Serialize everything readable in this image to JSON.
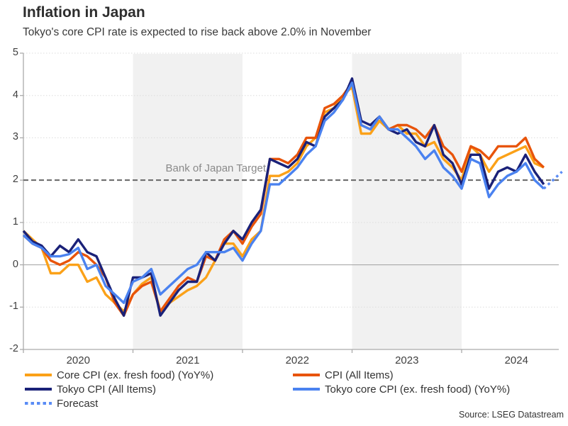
{
  "title": "Inflation in Japan",
  "subtitle": "Tokyo's core CPI rate is expected to rise back above 2.0% in November",
  "source": "Source: LSEG Datastream",
  "annotations": {
    "boj_target_label": "Bank of Japan Target",
    "boj_target_value": 2.0
  },
  "colors": {
    "band": "#f1f1f1",
    "gridline": "#dcdcdc",
    "zero_line": "#a0a0a0",
    "axis": "#ababab",
    "target_line": "#666666"
  },
  "chart_data": {
    "type": "line",
    "x_start": "2020-01",
    "x_frequency": "monthly",
    "x_tick_labels": [
      "2020",
      "2021",
      "2022",
      "2023",
      "2024"
    ],
    "shaded_year_bands": [
      "2021",
      "2023"
    ],
    "ylim": [
      -2,
      5
    ],
    "y_ticks": [
      5,
      4,
      3,
      2,
      1,
      0,
      -1,
      -2
    ],
    "series": [
      {
        "name": "Core CPI (ex. fresh food) (YoY%)",
        "color": "#FBA118",
        "values": [
          0.8,
          0.6,
          0.4,
          -0.2,
          -0.2,
          0.0,
          0.0,
          -0.4,
          -0.3,
          -0.7,
          -0.9,
          -1.1,
          -0.7,
          -0.45,
          -0.3,
          -1.1,
          -0.9,
          -0.75,
          -0.6,
          -0.5,
          -0.3,
          0.1,
          0.5,
          0.5,
          0.2,
          0.6,
          0.8,
          2.1,
          2.1,
          2.2,
          2.4,
          2.8,
          3.0,
          3.6,
          3.7,
          4.0,
          4.2,
          3.1,
          3.1,
          3.4,
          3.2,
          3.3,
          3.1,
          3.1,
          2.8,
          2.9,
          2.5,
          2.3,
          2.0,
          2.8,
          2.6,
          2.2,
          2.5,
          2.6,
          2.7,
          2.8,
          2.4,
          2.3
        ]
      },
      {
        "name": "CPI (All Items)",
        "color": "#E8540A",
        "values": [
          0.7,
          0.5,
          0.4,
          0.1,
          0.0,
          0.1,
          0.3,
          0.2,
          0.0,
          -0.3,
          -0.9,
          -1.2,
          -0.7,
          -0.5,
          -0.4,
          -1.1,
          -0.8,
          -0.5,
          -0.3,
          -0.4,
          0.2,
          0.1,
          0.6,
          0.8,
          0.5,
          0.9,
          1.2,
          2.5,
          2.5,
          2.4,
          2.6,
          3.0,
          3.0,
          3.7,
          3.8,
          4.0,
          4.3,
          3.3,
          3.2,
          3.5,
          3.2,
          3.3,
          3.3,
          3.2,
          3.0,
          3.3,
          2.8,
          2.6,
          2.2,
          2.8,
          2.7,
          2.5,
          2.8,
          2.8,
          2.8,
          3.0,
          2.5,
          2.3
        ]
      },
      {
        "name": "Tokyo CPI (All Items)",
        "color": "#1A2178",
        "values": [
          0.8,
          0.55,
          0.45,
          0.2,
          0.45,
          0.3,
          0.6,
          0.3,
          0.2,
          -0.3,
          -0.8,
          -1.2,
          -0.3,
          -0.3,
          -0.2,
          -1.2,
          -0.9,
          -0.6,
          -0.4,
          -0.4,
          0.3,
          0.1,
          0.5,
          0.8,
          0.6,
          1.0,
          1.3,
          2.5,
          2.4,
          2.3,
          2.5,
          2.9,
          2.8,
          3.5,
          3.7,
          3.9,
          4.4,
          3.4,
          3.3,
          3.5,
          3.2,
          3.1,
          3.2,
          2.9,
          2.8,
          3.3,
          2.6,
          2.4,
          1.9,
          2.6,
          2.6,
          1.8,
          2.2,
          2.3,
          2.2,
          2.6,
          2.2,
          1.9
        ]
      },
      {
        "name": "Tokyo core CPI (ex. fresh food) (YoY%)",
        "color": "#4A82F0",
        "values": [
          0.7,
          0.5,
          0.4,
          0.2,
          0.2,
          0.25,
          0.4,
          -0.1,
          0.0,
          -0.5,
          -0.7,
          -0.9,
          -0.4,
          -0.3,
          -0.1,
          -0.7,
          -0.5,
          -0.3,
          -0.1,
          0.0,
          0.3,
          0.3,
          0.3,
          0.4,
          0.1,
          0.5,
          0.8,
          1.9,
          1.9,
          2.1,
          2.3,
          2.6,
          2.8,
          3.4,
          3.6,
          3.9,
          4.3,
          3.3,
          3.2,
          3.5,
          3.2,
          3.2,
          3.0,
          2.8,
          2.5,
          2.7,
          2.3,
          2.1,
          1.8,
          2.5,
          2.4,
          1.6,
          1.9,
          2.1,
          2.2,
          2.4,
          2.0,
          1.8
        ]
      },
      {
        "name": "Forecast",
        "color": "#5A8CF5",
        "style": "dotted",
        "start_index": 57,
        "values": [
          1.8,
          2.0,
          2.2
        ]
      }
    ]
  },
  "legend": {
    "left_column_series": [
      0,
      2,
      4
    ],
    "right_column_series": [
      1,
      3
    ]
  }
}
